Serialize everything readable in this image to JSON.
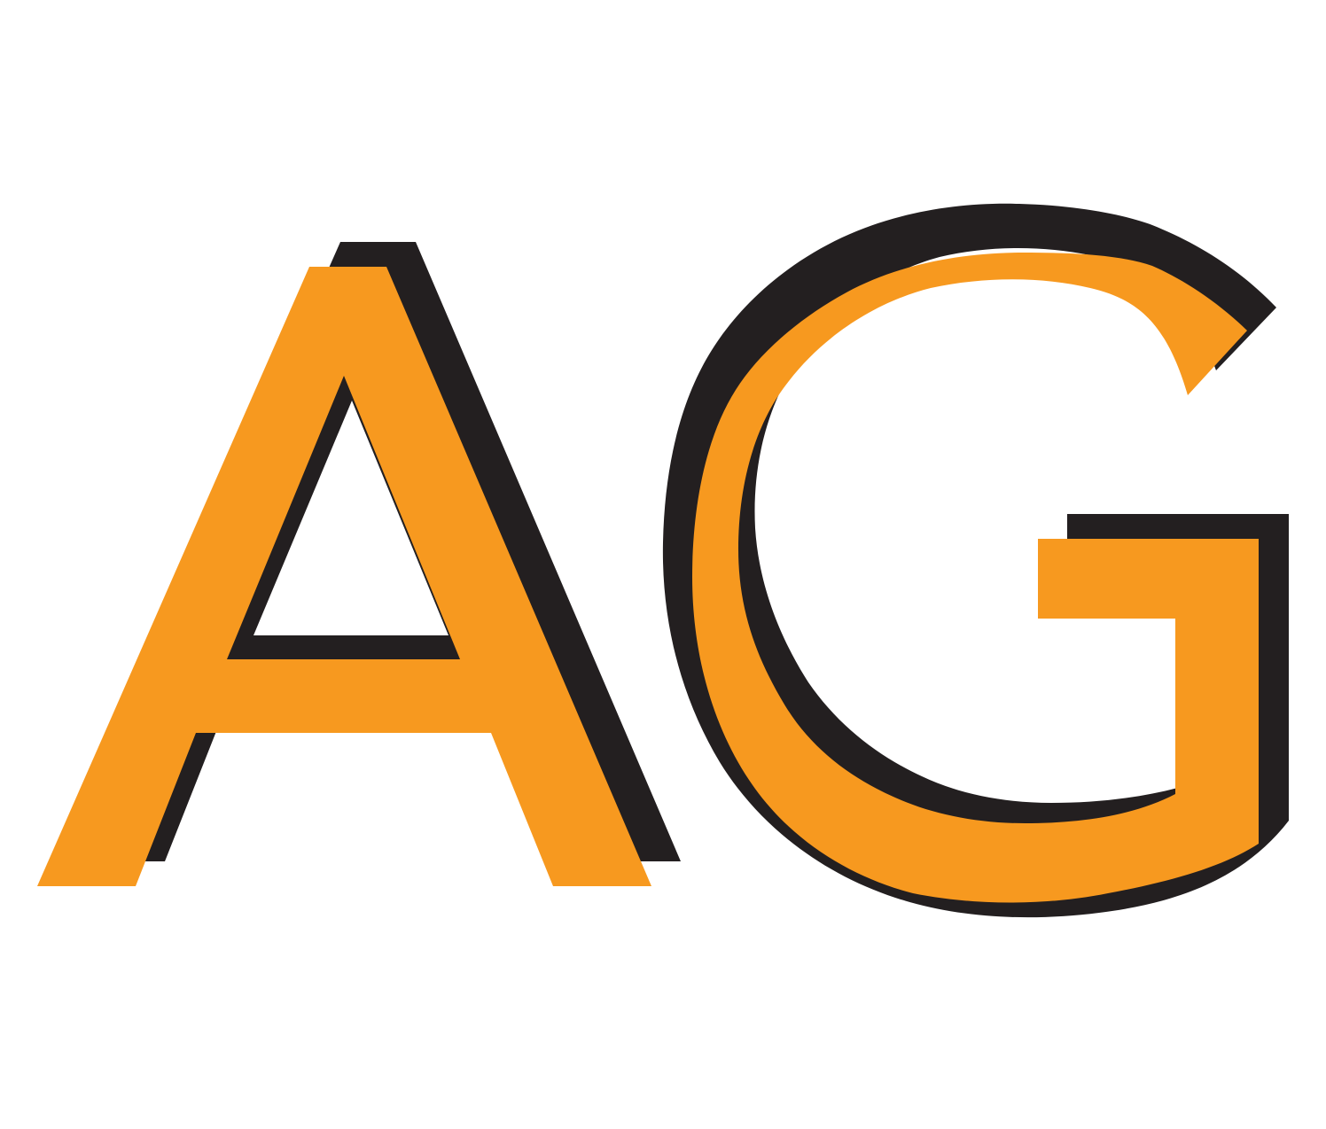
{
  "logo": {
    "text": "AG",
    "letters": [
      "A",
      "G"
    ],
    "colors": {
      "fill": "#F7991F",
      "shadow": "#231F20",
      "background": "#FFFFFF"
    }
  }
}
